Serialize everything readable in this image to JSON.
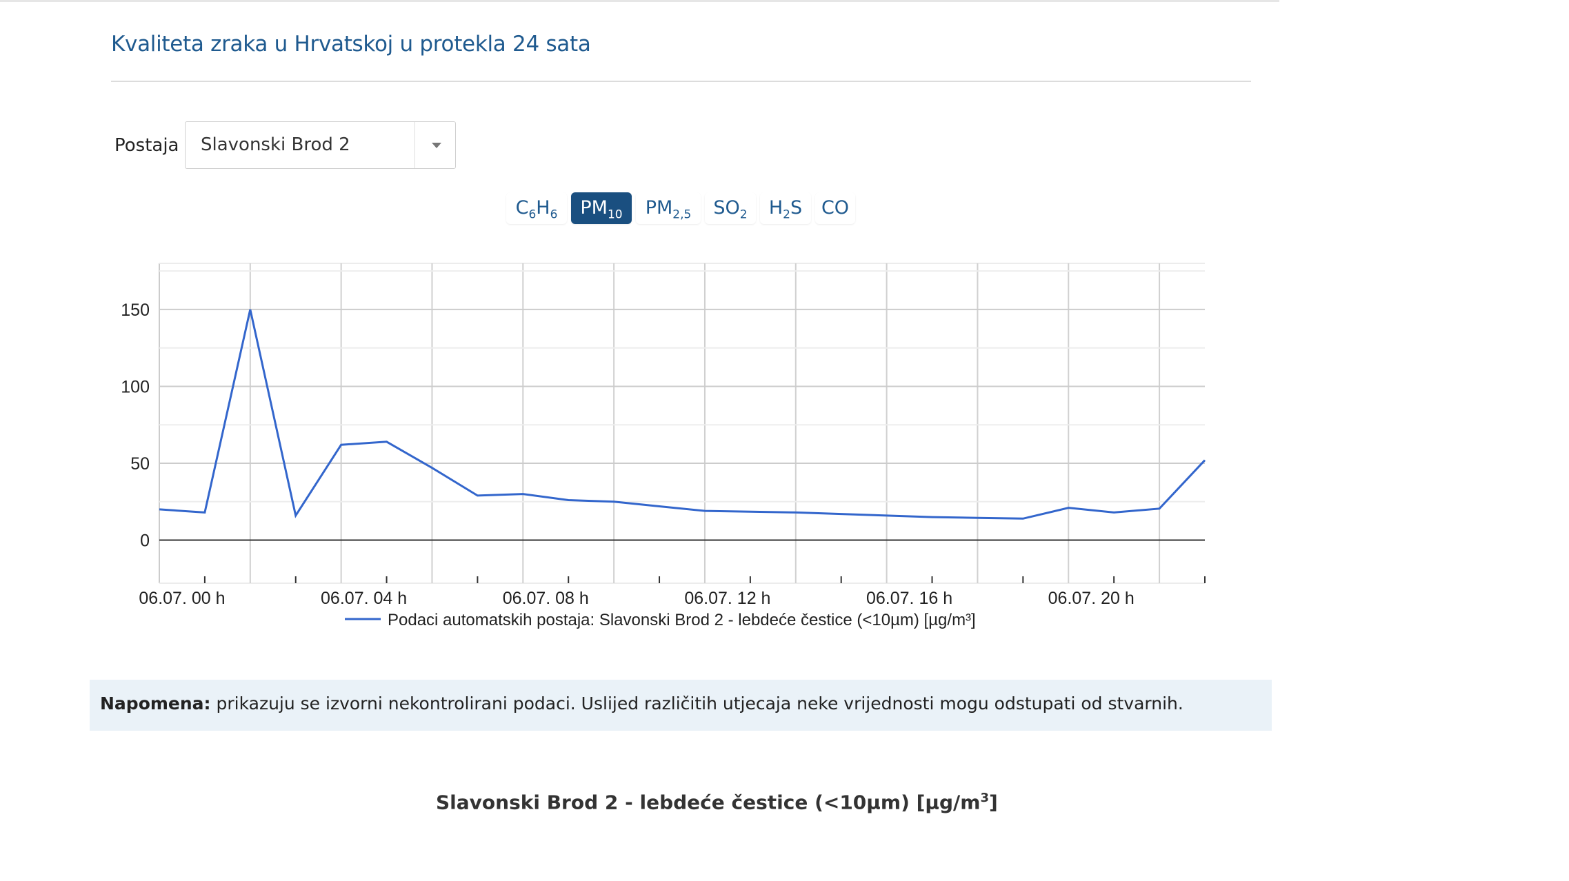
{
  "page": {
    "title": "Kvaliteta zraka u Hrvatskoj u protekla 24 sata"
  },
  "station": {
    "label": "Postaja",
    "selected": "Slavonski Brod 2"
  },
  "pollutant_tabs": [
    {
      "base": "C",
      "sub1": "6",
      "mid": "H",
      "sub2": "6",
      "active": false
    },
    {
      "base": "PM",
      "sub1": "10",
      "active": true
    },
    {
      "base": "PM",
      "sub1": "2,5",
      "active": false
    },
    {
      "base": "SO",
      "sub1": "2",
      "active": false
    },
    {
      "base": "H",
      "sub1": "2",
      "mid": "S",
      "active": false
    },
    {
      "base": "CO",
      "active": false
    }
  ],
  "chart_data": {
    "type": "line",
    "x_tick_labels": [
      "06.07. 00 h",
      "06.07. 04 h",
      "06.07. 08 h",
      "06.07. 12 h",
      "06.07. 16 h",
      "06.07. 20 h"
    ],
    "x": [
      "06.07. 00 h",
      "06.07. 01 h",
      "06.07. 02 h",
      "06.07. 03 h",
      "06.07. 04 h",
      "06.07. 05 h",
      "06.07. 06 h",
      "06.07. 07 h",
      "06.07. 08 h",
      "06.07. 09 h",
      "06.07. 10 h",
      "06.07. 11 h",
      "06.07. 12 h",
      "06.07. 13 h",
      "06.07. 14 h",
      "06.07. 15 h",
      "06.07. 16 h",
      "06.07. 17 h",
      "06.07. 18 h",
      "06.07. 19 h",
      "06.07. 20 h",
      "06.07. 21 h",
      "06.07. 22 h",
      "06.07. 23 h"
    ],
    "series": [
      {
        "name": "Podaci automatskih postaja: Slavonski Brod 2 - lebdeće čestice (<10µm) [µg/m³]",
        "color": "#3366cc",
        "values": [
          20,
          18,
          150,
          16,
          62,
          64,
          47,
          29,
          30,
          26,
          25,
          22,
          19,
          18.5,
          18,
          17,
          16,
          15,
          14.5,
          14,
          21,
          18,
          20.5,
          52
        ]
      }
    ],
    "y_ticks": [
      0,
      50,
      100,
      150
    ],
    "ylim": [
      -28,
      180
    ],
    "grid": true,
    "legend_position": "bottom"
  },
  "note": {
    "label": "Napomena:",
    "text": " prikazuju se izvorni nekontrolirani podaci. Uslijed različitih utjecaja neke vrijednosti mogu odstupati od stvarnih."
  },
  "second_chart": {
    "title_main": "Slavonski Brod 2 - lebdeće čestice (<10µm) [µg/m",
    "title_sup": "3",
    "title_end": "]"
  }
}
